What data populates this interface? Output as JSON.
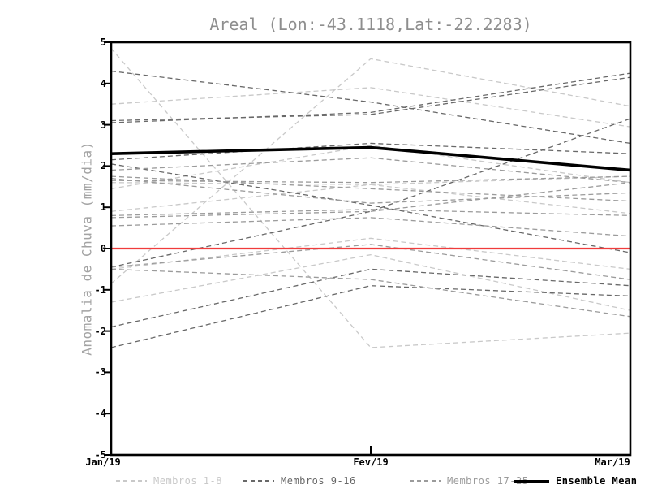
{
  "title": "Areal (Lon:-43.1118,Lat:-22.2283)",
  "ylabel": "Anomalia de Chuva (mm/dia)",
  "chart_data": {
    "type": "line",
    "title": "Areal (Lon:-43.1118,Lat:-22.2283)",
    "xlabel": "",
    "ylabel": "Anomalia de Chuva (mm/dia)",
    "x_categories": [
      "Jan/19",
      "Fev/19",
      "Mar/19"
    ],
    "ylim": [
      -5,
      5
    ],
    "yticks": [
      -5,
      -4,
      -3,
      -2,
      -1,
      0,
      1,
      2,
      3,
      4,
      5
    ],
    "grid": false,
    "legend_position": "bottom",
    "zero_line": {
      "value": 0,
      "color": "#f03c3c"
    },
    "groups": [
      {
        "id": "members_1_8",
        "label": "Membros 1-8",
        "color": "#c9c9c9",
        "style": "dashed"
      },
      {
        "id": "members_9_16",
        "label": "Membros 9-16",
        "color": "#686868",
        "style": "dashed"
      },
      {
        "id": "members_17_25",
        "label": "Membros 17-25",
        "color": "#9b9b9b",
        "style": "dashed"
      },
      {
        "id": "ensemble_mean",
        "label": "Ensemble Mean",
        "color": "#000000",
        "style": "solid"
      }
    ],
    "series": [
      {
        "name": "member-1",
        "group": 0,
        "values": [
          4.85,
          -2.4,
          -2.05
        ]
      },
      {
        "name": "member-2",
        "group": 0,
        "values": [
          -0.85,
          4.6,
          3.45
        ]
      },
      {
        "name": "member-3",
        "group": 0,
        "values": [
          3.5,
          3.9,
          2.95
        ]
      },
      {
        "name": "member-4",
        "group": 0,
        "values": [
          1.45,
          2.5,
          1.6
        ]
      },
      {
        "name": "member-5",
        "group": 0,
        "values": [
          1.6,
          1.55,
          0.85
        ]
      },
      {
        "name": "member-6",
        "group": 0,
        "values": [
          -0.5,
          0.25,
          -0.5
        ]
      },
      {
        "name": "member-7",
        "group": 0,
        "values": [
          -1.3,
          -0.15,
          -1.5
        ]
      },
      {
        "name": "member-8",
        "group": 0,
        "values": [
          0.9,
          1.55,
          1.75
        ]
      },
      {
        "name": "member-9",
        "group": 1,
        "values": [
          4.3,
          3.55,
          2.55
        ]
      },
      {
        "name": "member-10",
        "group": 1,
        "values": [
          3.1,
          3.25,
          4.15
        ]
      },
      {
        "name": "member-11",
        "group": 1,
        "values": [
          3.05,
          3.3,
          4.25
        ]
      },
      {
        "name": "member-12",
        "group": 1,
        "values": [
          2.15,
          2.55,
          2.3
        ]
      },
      {
        "name": "member-13",
        "group": 1,
        "values": [
          2.05,
          1.05,
          -0.1
        ]
      },
      {
        "name": "member-14",
        "group": 1,
        "values": [
          -0.45,
          0.9,
          3.15
        ]
      },
      {
        "name": "member-15",
        "group": 1,
        "values": [
          -1.9,
          -0.5,
          -0.9
        ]
      },
      {
        "name": "member-16",
        "group": 1,
        "values": [
          -2.4,
          -0.9,
          -1.15
        ]
      },
      {
        "name": "member-17",
        "group": 2,
        "values": [
          1.9,
          2.2,
          1.6
        ]
      },
      {
        "name": "member-18",
        "group": 2,
        "values": [
          1.75,
          1.45,
          1.15
        ]
      },
      {
        "name": "member-19",
        "group": 2,
        "values": [
          1.7,
          1.1,
          1.35
        ]
      },
      {
        "name": "member-20",
        "group": 2,
        "values": [
          1.65,
          1.6,
          1.75
        ]
      },
      {
        "name": "member-21",
        "group": 2,
        "values": [
          0.8,
          0.95,
          0.8
        ]
      },
      {
        "name": "member-22",
        "group": 2,
        "values": [
          0.75,
          0.9,
          1.6
        ]
      },
      {
        "name": "member-23",
        "group": 2,
        "values": [
          0.55,
          0.75,
          0.3
        ]
      },
      {
        "name": "member-24",
        "group": 2,
        "values": [
          -0.45,
          0.1,
          -0.75
        ]
      },
      {
        "name": "member-25",
        "group": 2,
        "values": [
          -0.5,
          -0.75,
          -1.65
        ]
      },
      {
        "name": "ensemble-mean",
        "group": 3,
        "values": [
          2.3,
          2.45,
          1.9
        ]
      }
    ]
  },
  "legend": {
    "entries": [
      {
        "label": "Membros 1-8",
        "color": "#c9c9c9",
        "style": "dashed"
      },
      {
        "label": "Membros 9-16",
        "color": "#686868",
        "style": "dashed"
      },
      {
        "label": "Membros 17-25",
        "color": "#9b9b9b",
        "style": "dashed"
      },
      {
        "label": "Ensemble Mean",
        "color": "#000000",
        "style": "solid"
      }
    ]
  },
  "colors": {
    "background": "#ffffff",
    "axis": "#000000",
    "title": "#8e8e8e",
    "ylabel": "#a3a3a3",
    "zero_line": "#f03c3c"
  }
}
